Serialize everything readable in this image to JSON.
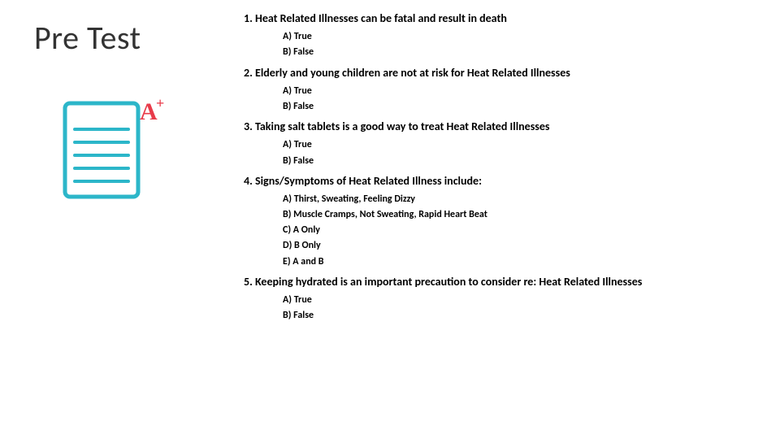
{
  "title": "Pre Test",
  "icon": {
    "border_color": "#2cb6c9",
    "line_color": "#2cb6c9",
    "a_color": "#e83b4a",
    "bg_color": "#ffffff"
  },
  "colors": {
    "background": "#ffffff",
    "text": "#000000",
    "title": "#333333"
  },
  "fonts": {
    "title_size": 40,
    "question_size": 14,
    "option_size": 12
  },
  "questions": [
    {
      "text": "1.  Heat Related Illnesses can be fatal and result in death",
      "opts": [
        "A)  True",
        "B)  False"
      ]
    },
    {
      "text": "2.  Elderly and young children are not at risk for Heat Related Illnesses",
      "opts": [
        "A)  True",
        "B)  False"
      ]
    },
    {
      "text": "3. Taking salt tablets is a good way to treat Heat Related Illnesses",
      "opts": [
        "A)  True",
        "B)  False"
      ]
    },
    {
      "text": "4.  Signs/Symptoms of Heat Related Illness include:",
      "opts": [
        "A)  Thirst, Sweating, Feeling Dizzy",
        "B)  Muscle Cramps, Not Sweating, Rapid Heart Beat",
        "C)  A Only",
        "D)  B Only",
        "E)  A and B"
      ]
    },
    {
      "text": "5.  Keeping hydrated is an important precaution to consider re: Heat Related Illnesses",
      "opts": [
        "A)  True",
        "B)  False"
      ]
    }
  ]
}
